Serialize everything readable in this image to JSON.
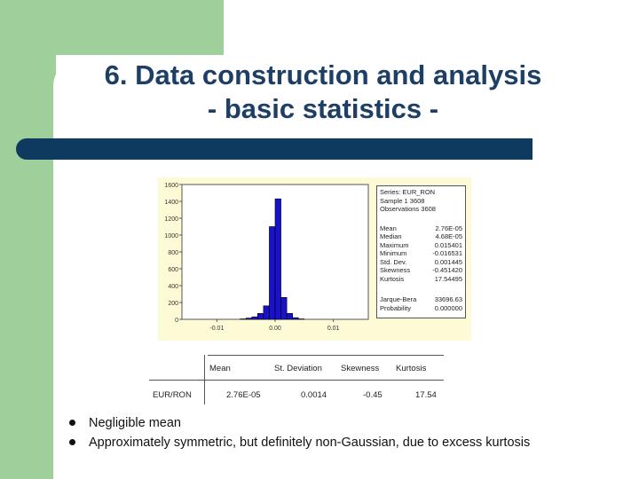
{
  "slide": {
    "title_line1": "6. Data construction and analysis",
    "title_line2": "- basic statistics -",
    "colors": {
      "green": "#9fcf9b",
      "navy": "#0e3a5f",
      "title": "#1d3f66",
      "bar_fill": "#1a12c8",
      "panel": "#fdfbd6"
    }
  },
  "chart_data": {
    "type": "bar",
    "title": "",
    "xlabel": "",
    "ylabel": "",
    "ylim": [
      0,
      1600
    ],
    "xlim": [
      -0.016,
      0.016
    ],
    "yticks": [
      "1600",
      "1400",
      "1200",
      "1000",
      "800",
      "600",
      "400",
      "200",
      "0"
    ],
    "xticks": [
      "-0.01",
      "0.00",
      "0.01"
    ],
    "bin_width": 0.001,
    "bin_starts": [
      -0.006,
      -0.005,
      -0.004,
      -0.003,
      -0.002,
      -0.001,
      0.0,
      0.001,
      0.002,
      0.003,
      0.004
    ],
    "values": [
      5,
      15,
      30,
      70,
      160,
      1100,
      1430,
      260,
      70,
      20,
      5
    ],
    "color": "#1a12c8"
  },
  "stats_box": {
    "series": "Series: EUR_RON",
    "sample": "Sample 1 3608",
    "observations": "Observations 3608",
    "rows": [
      {
        "label": "Mean",
        "value": "2.76E-05"
      },
      {
        "label": "Median",
        "value": "4.68E-05"
      },
      {
        "label": "Maximum",
        "value": "0.015401"
      },
      {
        "label": "Minimum",
        "value": "-0.016531"
      },
      {
        "label": "Std. Dev.",
        "value": "0.001445"
      },
      {
        "label": "Skewness",
        "value": "-0.451420"
      },
      {
        "label": "Kurtosis",
        "value": "17.54495"
      }
    ],
    "jb_rows": [
      {
        "label": "Jarque-Bera",
        "value": "33696.63"
      },
      {
        "label": "Probability",
        "value": "0.000000"
      }
    ]
  },
  "summary_table": {
    "headers": [
      "Mean",
      "St. Deviation",
      "Skewness",
      "Kurtosis"
    ],
    "row_label": "EUR/RON",
    "values": [
      "2.76E-05",
      "0.0014",
      "-0.45",
      "17.54"
    ]
  },
  "bullets": [
    "Negligible mean",
    "Approximately symmetric, but definitely non-Gaussian, due to excess kurtosis"
  ]
}
